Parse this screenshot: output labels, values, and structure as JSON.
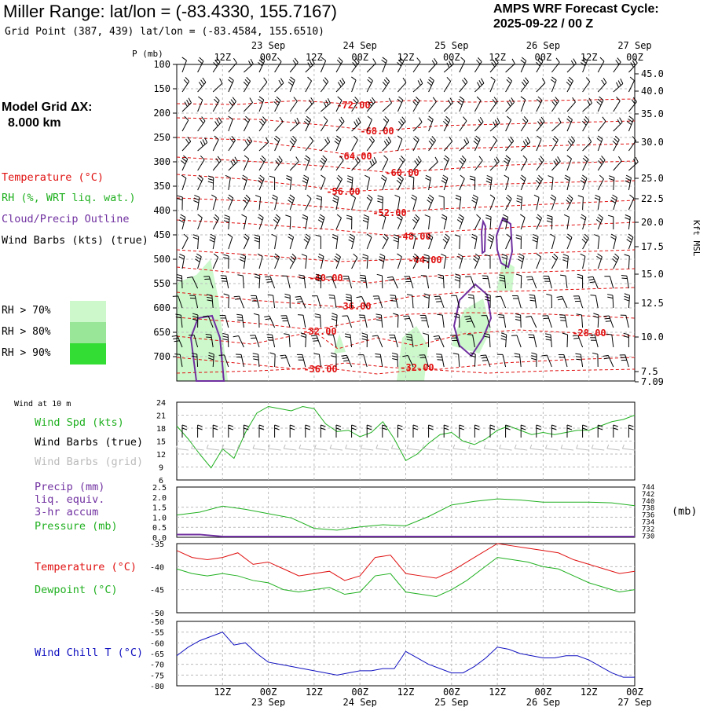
{
  "header": {
    "title": "Miller Range:  lat/lon = (-83.4330, 155.7167)",
    "subtitle": "Grid Point (387, 439) lat/lon = (-83.4584, 155.6510)",
    "cycle_line1": "AMPS WRF Forecast Cycle:",
    "cycle_line2": "2025-09-22 / 00  Z"
  },
  "grid_dx": {
    "line1": "Model Grid ΔX:",
    "line2": "8.000 km"
  },
  "legend": {
    "temperature": "Temperature (°C)",
    "rh": "RH (%, WRT liq. wat.)",
    "cloud": "Cloud/Precip Outline",
    "wind": "Wind Barbs (kts) (true)",
    "rh70": "RH > 70%",
    "rh80": "RH > 80%",
    "rh90": "RH > 90%",
    "rh_colors": [
      "#ccf8cc",
      "#99e699",
      "#33dd33"
    ]
  },
  "time_axis": {
    "top_hours": [
      "12Z",
      "00Z",
      "12Z",
      "00Z",
      "12Z",
      "00Z",
      "12Z",
      "00Z",
      "12Z",
      "00Z"
    ],
    "top_dates": [
      "23 Sep",
      "24 Sep",
      "25 Sep",
      "26 Sep",
      "27 Sep"
    ],
    "bottom_hours": [
      "12Z",
      "00Z",
      "12Z",
      "00Z",
      "12Z",
      "00Z",
      "12Z",
      "00Z",
      "12Z",
      "00Z"
    ],
    "bottom_dates": [
      "23 Sep",
      "24 Sep",
      "25 Sep",
      "26 Sep",
      "27 Sep"
    ]
  },
  "colors": {
    "temp": "#e01010",
    "rh": "#20b020",
    "cloud": "#7030a0",
    "pressure": "#20b020",
    "windchill": "#1010c0",
    "grid": "#bbbbbb"
  },
  "chart_data": [
    {
      "type": "cross-section",
      "ylabel": "P (mb)",
      "right_label": "Kft MSL",
      "pressure_ticks": [
        100,
        150,
        200,
        250,
        300,
        350,
        400,
        450,
        500,
        550,
        600,
        650,
        700
      ],
      "height_ticks": [
        "45.0",
        "40.0",
        "35.0",
        "30.0",
        "25.0",
        "22.5",
        "20.0",
        "17.5",
        "15.0",
        "12.5",
        "10.0",
        "7.5",
        "7.09"
      ],
      "temperature_labels": [
        "-72.00",
        "-68.00",
        "-64.00",
        "-60.00",
        "-56.00",
        "-52.00",
        "-48.00",
        "-44.00",
        "-40.00",
        "-36.00",
        "-32.00",
        "-32.00",
        "-36.00",
        "-28.00"
      ]
    },
    {
      "type": "line",
      "title": "Wind at 10 m",
      "series_labels": [
        "Wind Spd (kts)",
        "Wind Barbs (true)",
        "Wind Barbs (grid)"
      ],
      "yticks": [
        24,
        21,
        18,
        15,
        12,
        9,
        6
      ],
      "ylim": [
        6,
        24
      ],
      "x_hours": [
        0,
        3,
        6,
        9,
        12,
        15,
        18,
        21,
        24,
        27,
        30,
        33,
        36,
        39,
        42,
        45,
        48,
        51,
        54,
        57,
        60,
        63,
        66,
        69,
        72,
        75,
        78,
        81,
        84,
        87,
        90,
        93,
        96,
        99,
        102,
        105,
        108,
        111,
        114,
        117,
        120
      ],
      "values": [
        18.5,
        15.5,
        12,
        8.8,
        13.2,
        11.0,
        17.0,
        21.5,
        23.0,
        22.5,
        22.0,
        23.0,
        22.5,
        19.0,
        17.2,
        17.5,
        16.0,
        17.0,
        19.5,
        15.5,
        10.5,
        12.0,
        14.5,
        16.5,
        17.0,
        15.0,
        14.2,
        15.5,
        17.5,
        18.5,
        17.5,
        16.5,
        17.0,
        16.5,
        17.0,
        17.5,
        17.5,
        18.5,
        19.5,
        20.0,
        21.0
      ]
    },
    {
      "type": "line",
      "series_labels": [
        "Precip (mm)",
        "liq. equiv.",
        "3-hr accum",
        "Pressure (mb)"
      ],
      "left_ticks": [
        "2.5",
        "2.0",
        "1.5",
        "1.0",
        "0.5",
        "0.0"
      ],
      "right_ticks": [
        "744",
        "742",
        "740",
        "738",
        "736",
        "734",
        "732",
        "730"
      ],
      "right_unit": "(mb)",
      "ylim_precip": [
        0,
        2.5
      ],
      "ylim_pressure": [
        730,
        744
      ],
      "x_hours": [
        0,
        6,
        12,
        18,
        24,
        30,
        36,
        42,
        48,
        54,
        60,
        66,
        72,
        78,
        84,
        90,
        96,
        102,
        108,
        114,
        120
      ],
      "pressure": [
        736.2,
        737.0,
        738.7,
        737.8,
        736.6,
        735.4,
        732.5,
        732.0,
        732.9,
        733.5,
        733.2,
        735.8,
        739.0,
        740.0,
        740.7,
        740.4,
        739.8,
        739.8,
        739.8,
        739.6,
        738.8
      ],
      "precip": [
        0.1,
        0.1,
        0.0,
        0.0,
        0.0,
        0.0,
        0.0,
        0.0,
        0.0,
        0.0,
        0.0,
        0.0,
        0.0,
        0.0,
        0.0,
        0.0,
        0.0,
        0.0,
        0.0,
        0.0,
        0.0
      ]
    },
    {
      "type": "line",
      "series": [
        {
          "name": "Temperature (°C)",
          "values": [
            -36.5,
            -38.0,
            -38.5,
            -38.0,
            -37.0,
            -39.5,
            -39.0,
            -40.5,
            -42.0,
            -41.5,
            -41.0,
            -43.0,
            -42.0,
            -38.0,
            -37.5,
            -41.5,
            -42.0,
            -42.5,
            -41.0,
            -39.0,
            -37.0,
            -35.0,
            -35.5,
            -36.0,
            -36.5,
            -37.0,
            -38.5,
            -39.5,
            -40.5,
            -41.5,
            -41.0
          ]
        },
        {
          "name": "Dewpoint (°C)",
          "values": [
            -40.5,
            -41.5,
            -42.0,
            -41.5,
            -42.0,
            -43.0,
            -43.5,
            -45.0,
            -45.5,
            -45.0,
            -44.5,
            -46.0,
            -45.5,
            -42.0,
            -41.5,
            -45.5,
            -46.0,
            -46.5,
            -45.0,
            -43.0,
            -40.5,
            -38.0,
            -38.5,
            -39.0,
            -40.0,
            -40.5,
            -42.0,
            -43.5,
            -44.5,
            -45.5,
            -45.0
          ]
        }
      ],
      "yticks": [
        -35,
        -40,
        -45,
        -50
      ],
      "ylim": [
        -50,
        -35
      ],
      "x_hours": [
        0,
        4,
        8,
        12,
        16,
        20,
        24,
        28,
        32,
        36,
        40,
        44,
        48,
        52,
        56,
        60,
        64,
        68,
        72,
        76,
        80,
        84,
        88,
        92,
        96,
        100,
        104,
        108,
        112,
        116,
        120
      ]
    },
    {
      "type": "line",
      "series_label": "Wind Chill T (°C)",
      "yticks": [
        -50,
        -55,
        -60,
        -65,
        -70,
        -75,
        -80
      ],
      "ylim": [
        -80,
        -50
      ],
      "x_hours": [
        0,
        3,
        6,
        9,
        12,
        15,
        18,
        21,
        24,
        27,
        30,
        33,
        36,
        39,
        42,
        45,
        48,
        51,
        54,
        57,
        60,
        63,
        66,
        69,
        72,
        75,
        78,
        81,
        84,
        87,
        90,
        93,
        96,
        99,
        102,
        105,
        108,
        111,
        114,
        117,
        120
      ],
      "values": [
        -66,
        -62,
        -59,
        -57,
        -55,
        -61,
        -60,
        -65,
        -69,
        -70,
        -71,
        -72,
        -73,
        -74,
        -75,
        -74,
        -73,
        -73,
        -72,
        -72,
        -64,
        -67,
        -70,
        -72,
        -74,
        -74,
        -71,
        -67,
        -62,
        -63,
        -65,
        -66,
        -67,
        -67,
        -66,
        -66,
        -68,
        -71,
        -74,
        -76,
        -76
      ]
    }
  ]
}
